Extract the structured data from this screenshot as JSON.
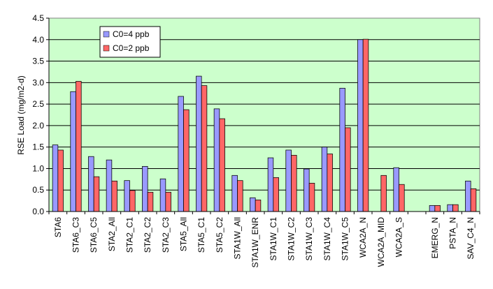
{
  "chart_data": {
    "type": "bar",
    "title": "",
    "xlabel": "",
    "ylabel": "RSE Load (mg/m2-d)",
    "ylim": [
      0,
      4.5
    ],
    "yticks": [
      "0.0",
      "0.5",
      "1.0",
      "1.5",
      "2.0",
      "2.5",
      "3.0",
      "3.5",
      "4.0",
      "4.5"
    ],
    "grid": true,
    "legend_position": "top-left",
    "plot_background": "#ccffcc",
    "categories": [
      "STA6",
      "STA6_C3",
      "STA6_C5",
      "STA2_All",
      "STA2_C1",
      "STA2_C2",
      "STA2_C3",
      "STA5_All",
      "STA5_C1",
      "STA5_C2",
      "STA1W_All",
      "STA1W_ENR",
      "STA1W_C1",
      "STA1W_C2",
      "STA1W_C3",
      "STA1W_C4",
      "STA1W_C5",
      "WCA2A_N",
      "WCA2A_MID",
      "WCA2A_S",
      "",
      "EMERG_N",
      "PSTA_N",
      "SAV_C4_N"
    ],
    "series": [
      {
        "name": "C0=4 ppb",
        "color": "#9999ff",
        "values": [
          1.55,
          2.79,
          1.28,
          1.2,
          0.72,
          1.05,
          0.76,
          2.68,
          3.15,
          2.39,
          0.84,
          0.32,
          1.25,
          1.43,
          0.99,
          1.5,
          2.87,
          4.0,
          null,
          1.02,
          null,
          0.14,
          0.16,
          0.71
        ]
      },
      {
        "name": "C0=2 ppb",
        "color": "#ff6666",
        "values": [
          1.43,
          3.03,
          0.81,
          0.71,
          0.49,
          0.45,
          0.45,
          2.37,
          2.93,
          2.16,
          0.72,
          0.27,
          0.79,
          1.31,
          0.66,
          1.34,
          1.95,
          4.01,
          0.84,
          0.63,
          null,
          0.14,
          0.16,
          0.53
        ]
      }
    ]
  }
}
